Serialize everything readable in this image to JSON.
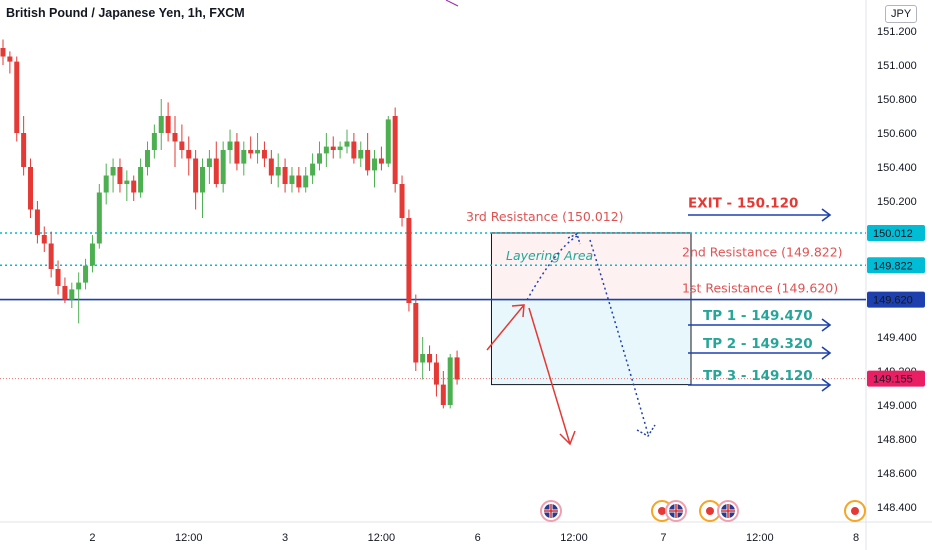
{
  "header": {
    "title": "British Pound / Japanese Yen, 1h, FXCM",
    "currency": "JPY"
  },
  "colors": {
    "bull": "#4caf50",
    "bear": "#e53935",
    "blue": "#1e40af",
    "teal": "#26a69a",
    "cyan": "#00bcd4",
    "red_text": "#e05252",
    "pink_dot": "#e57373"
  },
  "chart_data": {
    "type": "candlestick",
    "title": "British Pound / Japanese Yen, 1h, FXCM",
    "ylim": [
      148.3,
      151.3
    ],
    "xlim": [
      0,
      140
    ],
    "y_ticks": [
      151.2,
      151.0,
      150.8,
      150.6,
      150.4,
      150.2,
      150.0,
      149.8,
      149.6,
      149.4,
      149.2,
      149.0,
      148.8,
      148.6,
      148.4
    ],
    "y_tick_labels": [
      "151.200",
      "151.000",
      "150.800",
      "150.600",
      "150.400",
      "150.200",
      "",
      "",
      "",
      "149.400",
      "149.200",
      "149.000",
      "148.800",
      "148.600",
      "148.400"
    ],
    "x_ticks": [
      {
        "x": 13,
        "label": "2"
      },
      {
        "x": 27,
        "label": "12:00"
      },
      {
        "x": 41,
        "label": "3"
      },
      {
        "x": 55,
        "label": "12:00"
      },
      {
        "x": 69,
        "label": "6"
      },
      {
        "x": 83,
        "label": "12:00"
      },
      {
        "x": 96,
        "label": "7"
      },
      {
        "x": 110,
        "label": "12:00"
      },
      {
        "x": 124,
        "label": "8"
      }
    ],
    "candles": [
      {
        "x": 0,
        "o": 151.1,
        "h": 151.15,
        "l": 151.0,
        "c": 151.05
      },
      {
        "x": 1,
        "o": 151.05,
        "h": 151.08,
        "l": 150.95,
        "c": 151.02
      },
      {
        "x": 2,
        "o": 151.02,
        "h": 151.05,
        "l": 150.55,
        "c": 150.6
      },
      {
        "x": 3,
        "o": 150.6,
        "h": 150.7,
        "l": 150.35,
        "c": 150.4
      },
      {
        "x": 4,
        "o": 150.4,
        "h": 150.45,
        "l": 150.1,
        "c": 150.15
      },
      {
        "x": 5,
        "o": 150.15,
        "h": 150.2,
        "l": 149.95,
        "c": 150.0
      },
      {
        "x": 6,
        "o": 150.0,
        "h": 150.05,
        "l": 149.9,
        "c": 149.95
      },
      {
        "x": 7,
        "o": 149.95,
        "h": 150.02,
        "l": 149.75,
        "c": 149.8
      },
      {
        "x": 8,
        "o": 149.8,
        "h": 149.85,
        "l": 149.65,
        "c": 149.7
      },
      {
        "x": 9,
        "o": 149.7,
        "h": 149.75,
        "l": 149.6,
        "c": 149.62
      },
      {
        "x": 10,
        "o": 149.62,
        "h": 149.72,
        "l": 149.57,
        "c": 149.68
      },
      {
        "x": 11,
        "o": 149.68,
        "h": 149.78,
        "l": 149.48,
        "c": 149.72
      },
      {
        "x": 12,
        "o": 149.72,
        "h": 149.86,
        "l": 149.68,
        "c": 149.82
      },
      {
        "x": 13,
        "o": 149.82,
        "h": 150.0,
        "l": 149.78,
        "c": 149.95
      },
      {
        "x": 14,
        "o": 149.95,
        "h": 150.3,
        "l": 149.92,
        "c": 150.25
      },
      {
        "x": 15,
        "o": 150.25,
        "h": 150.42,
        "l": 150.18,
        "c": 150.35
      },
      {
        "x": 16,
        "o": 150.35,
        "h": 150.45,
        "l": 150.25,
        "c": 150.4
      },
      {
        "x": 17,
        "o": 150.4,
        "h": 150.45,
        "l": 150.25,
        "c": 150.3
      },
      {
        "x": 18,
        "o": 150.3,
        "h": 150.38,
        "l": 150.2,
        "c": 150.32
      },
      {
        "x": 19,
        "o": 150.32,
        "h": 150.35,
        "l": 150.2,
        "c": 150.25
      },
      {
        "x": 20,
        "o": 150.25,
        "h": 150.45,
        "l": 150.22,
        "c": 150.4
      },
      {
        "x": 21,
        "o": 150.4,
        "h": 150.55,
        "l": 150.35,
        "c": 150.5
      },
      {
        "x": 22,
        "o": 150.5,
        "h": 150.65,
        "l": 150.45,
        "c": 150.6
      },
      {
        "x": 23,
        "o": 150.6,
        "h": 150.8,
        "l": 150.5,
        "c": 150.7
      },
      {
        "x": 24,
        "o": 150.7,
        "h": 150.78,
        "l": 150.55,
        "c": 150.6
      },
      {
        "x": 25,
        "o": 150.6,
        "h": 150.7,
        "l": 150.4,
        "c": 150.55
      },
      {
        "x": 26,
        "o": 150.55,
        "h": 150.65,
        "l": 150.45,
        "c": 150.5
      },
      {
        "x": 27,
        "o": 150.5,
        "h": 150.58,
        "l": 150.35,
        "c": 150.45
      },
      {
        "x": 28,
        "o": 150.45,
        "h": 150.5,
        "l": 150.15,
        "c": 150.25
      },
      {
        "x": 29,
        "o": 150.25,
        "h": 150.45,
        "l": 150.1,
        "c": 150.4
      },
      {
        "x": 30,
        "o": 150.4,
        "h": 150.5,
        "l": 150.3,
        "c": 150.45
      },
      {
        "x": 31,
        "o": 150.45,
        "h": 150.55,
        "l": 150.28,
        "c": 150.3
      },
      {
        "x": 32,
        "o": 150.3,
        "h": 150.55,
        "l": 150.25,
        "c": 150.5
      },
      {
        "x": 33,
        "o": 150.5,
        "h": 150.62,
        "l": 150.42,
        "c": 150.55
      },
      {
        "x": 34,
        "o": 150.55,
        "h": 150.6,
        "l": 150.38,
        "c": 150.42
      },
      {
        "x": 35,
        "o": 150.42,
        "h": 150.55,
        "l": 150.35,
        "c": 150.5
      },
      {
        "x": 36,
        "o": 150.5,
        "h": 150.58,
        "l": 150.45,
        "c": 150.48
      },
      {
        "x": 37,
        "o": 150.48,
        "h": 150.6,
        "l": 150.42,
        "c": 150.5
      },
      {
        "x": 38,
        "o": 150.5,
        "h": 150.55,
        "l": 150.4,
        "c": 150.45
      },
      {
        "x": 39,
        "o": 150.45,
        "h": 150.5,
        "l": 150.3,
        "c": 150.35
      },
      {
        "x": 40,
        "o": 150.35,
        "h": 150.48,
        "l": 150.28,
        "c": 150.4
      },
      {
        "x": 41,
        "o": 150.4,
        "h": 150.45,
        "l": 150.25,
        "c": 150.3
      },
      {
        "x": 42,
        "o": 150.3,
        "h": 150.4,
        "l": 150.25,
        "c": 150.35
      },
      {
        "x": 43,
        "o": 150.35,
        "h": 150.4,
        "l": 150.25,
        "c": 150.28
      },
      {
        "x": 44,
        "o": 150.28,
        "h": 150.4,
        "l": 150.25,
        "c": 150.35
      },
      {
        "x": 45,
        "o": 150.35,
        "h": 150.48,
        "l": 150.3,
        "c": 150.42
      },
      {
        "x": 46,
        "o": 150.42,
        "h": 150.55,
        "l": 150.38,
        "c": 150.48
      },
      {
        "x": 47,
        "o": 150.48,
        "h": 150.6,
        "l": 150.4,
        "c": 150.52
      },
      {
        "x": 48,
        "o": 150.52,
        "h": 150.58,
        "l": 150.45,
        "c": 150.5
      },
      {
        "x": 49,
        "o": 150.5,
        "h": 150.55,
        "l": 150.45,
        "c": 150.52
      },
      {
        "x": 50,
        "o": 150.52,
        "h": 150.62,
        "l": 150.48,
        "c": 150.55
      },
      {
        "x": 51,
        "o": 150.55,
        "h": 150.6,
        "l": 150.42,
        "c": 150.45
      },
      {
        "x": 52,
        "o": 150.45,
        "h": 150.55,
        "l": 150.4,
        "c": 150.5
      },
      {
        "x": 53,
        "o": 150.5,
        "h": 150.6,
        "l": 150.35,
        "c": 150.38
      },
      {
        "x": 54,
        "o": 150.38,
        "h": 150.5,
        "l": 150.28,
        "c": 150.45
      },
      {
        "x": 55,
        "o": 150.45,
        "h": 150.52,
        "l": 150.38,
        "c": 150.42
      },
      {
        "x": 56,
        "o": 150.42,
        "h": 150.7,
        "l": 150.4,
        "c": 150.68
      },
      {
        "x": 57,
        "o": 150.7,
        "h": 150.75,
        "l": 150.25,
        "c": 150.3
      },
      {
        "x": 58,
        "o": 150.3,
        "h": 150.35,
        "l": 150.05,
        "c": 150.1
      },
      {
        "x": 59,
        "o": 150.1,
        "h": 150.15,
        "l": 149.55,
        "c": 149.6
      },
      {
        "x": 60,
        "o": 149.6,
        "h": 149.65,
        "l": 149.2,
        "c": 149.25
      },
      {
        "x": 61,
        "o": 149.25,
        "h": 149.4,
        "l": 149.15,
        "c": 149.3
      },
      {
        "x": 62,
        "o": 149.3,
        "h": 149.35,
        "l": 149.2,
        "c": 149.25
      },
      {
        "x": 63,
        "o": 149.25,
        "h": 149.3,
        "l": 149.05,
        "c": 149.12
      },
      {
        "x": 64,
        "o": 149.12,
        "h": 149.2,
        "l": 148.98,
        "c": 149.0
      },
      {
        "x": 65,
        "o": 149.0,
        "h": 149.3,
        "l": 148.98,
        "c": 149.28
      },
      {
        "x": 66,
        "o": 149.28,
        "h": 149.32,
        "l": 149.12,
        "c": 149.15
      }
    ],
    "levels": [
      {
        "name": "3rd Resistance",
        "label": "3rd Resistance (150.012)",
        "value": 150.012,
        "badge": "150.012",
        "style": "dotted"
      },
      {
        "name": "2nd Resistance",
        "label": "2nd Resistance (149.822)",
        "value": 149.822,
        "badge": "149.822",
        "style": "dotted"
      },
      {
        "name": "1st Resistance",
        "label": "1st Resistance (149.620)",
        "value": 149.62,
        "badge": "149.620",
        "style": "solid"
      },
      {
        "name": "Last Price",
        "value": 149.155,
        "badge": "149.155",
        "style": "dotted"
      }
    ],
    "annotations": {
      "exit": {
        "label": "EXIT - 150.120",
        "value": 150.12
      },
      "targets": [
        {
          "label": "TP 1 - 149.470",
          "value": 149.47
        },
        {
          "label": "TP 2 - 149.320",
          "value": 149.32
        },
        {
          "label": "TP 3 - 149.120",
          "value": 149.12
        }
      ],
      "layering_area": {
        "label": "Layering Area",
        "x_start": 71,
        "x_end": 100,
        "y_top": 150.012,
        "y_mid": 149.62,
        "y_bottom": 149.12
      }
    },
    "grid": false,
    "legend": "none"
  }
}
